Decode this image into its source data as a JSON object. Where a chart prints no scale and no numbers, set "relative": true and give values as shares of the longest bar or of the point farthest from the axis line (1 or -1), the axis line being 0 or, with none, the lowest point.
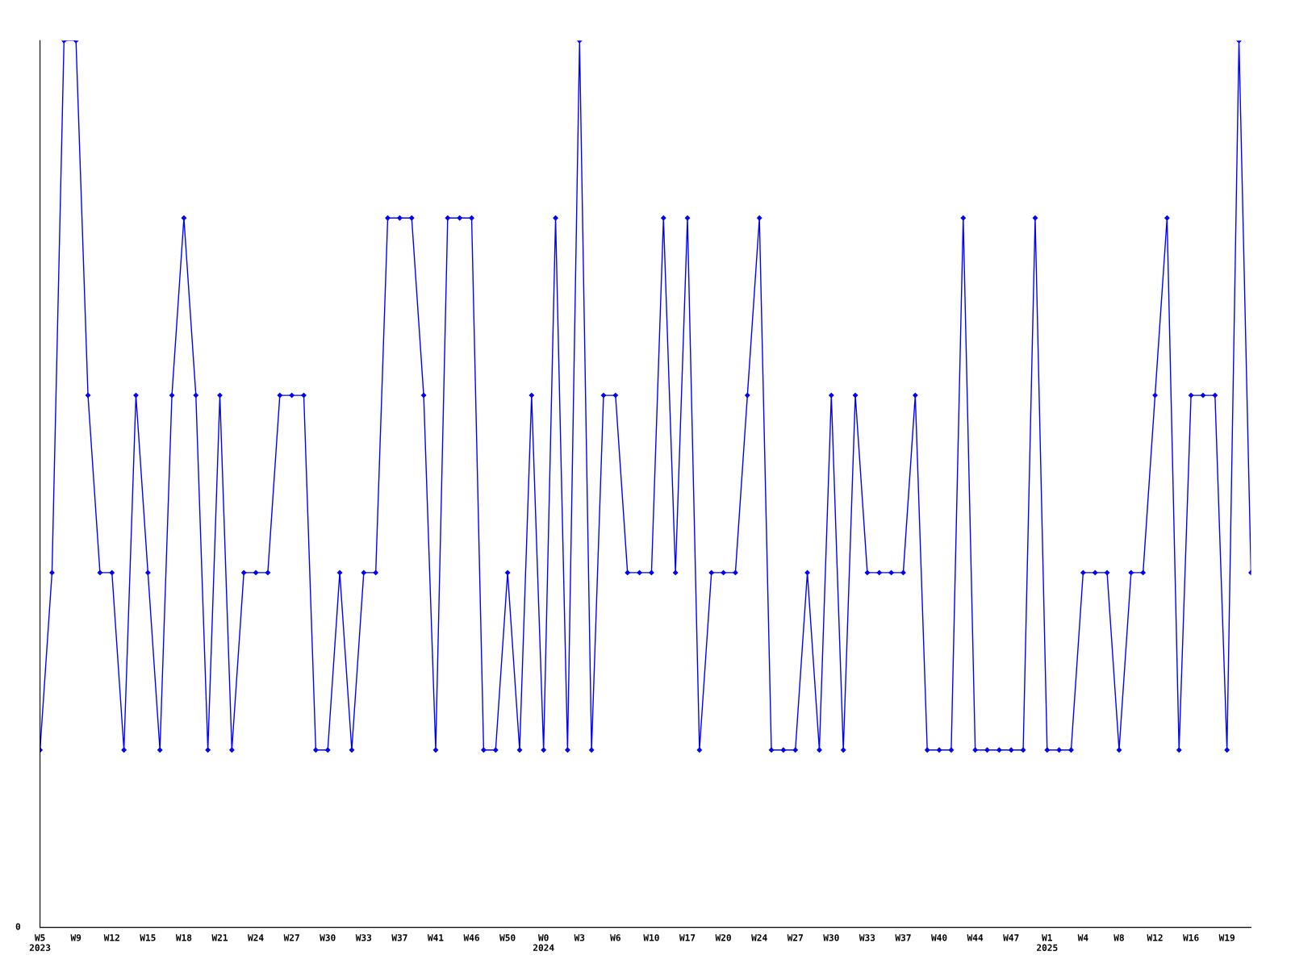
{
  "chart_data": {
    "type": "line",
    "relative": true,
    "annotations": [
      "0"
    ],
    "marker": "diamond",
    "line_style": "solid",
    "grid": false,
    "legend": false,
    "categories": [
      "W5\n2023",
      null,
      null,
      "W9",
      null,
      null,
      "W12",
      null,
      null,
      "W15",
      null,
      null,
      "W18",
      null,
      null,
      "W21",
      null,
      null,
      "W24",
      null,
      null,
      "W27",
      null,
      null,
      "W30",
      null,
      null,
      "W33",
      null,
      null,
      "W37",
      null,
      null,
      "W41",
      null,
      null,
      "W46",
      null,
      null,
      "W50",
      null,
      null,
      "W0\n2024",
      null,
      null,
      "W3",
      null,
      null,
      "W6",
      null,
      null,
      "W10",
      null,
      null,
      "W17",
      null,
      null,
      "W20",
      null,
      null,
      "W24",
      null,
      null,
      "W27",
      null,
      null,
      "W30",
      null,
      null,
      "W33",
      null,
      null,
      "W37",
      null,
      null,
      "W40",
      null,
      null,
      "W44",
      null,
      null,
      "W47",
      null,
      null,
      "W1\n2025",
      null,
      null,
      "W4",
      null,
      null,
      "W8",
      null,
      null,
      "W12",
      null,
      null,
      "W16",
      null,
      null,
      "W19",
      null,
      null
    ],
    "series": [
      {
        "color": "#0000ff",
        "values": [
          0.2,
          0.4,
          1,
          1,
          0.6,
          0.4,
          0.4,
          0.2,
          0.6,
          0.4,
          0.2,
          0.6,
          0.8,
          0.6,
          0.2,
          0.6,
          0.2,
          0.4,
          0.4,
          0.4,
          0.6,
          0.6,
          0.6,
          0.2,
          0.2,
          0.4,
          0.2,
          0.4,
          0.4,
          0.8,
          0.8,
          0.8,
          0.6,
          0.2,
          0.8,
          0.8,
          0.8,
          0.2,
          0.2,
          0.4,
          0.2,
          0.6,
          0.2,
          0.8,
          0.2,
          1,
          0.2,
          0.6,
          0.6,
          0.4,
          0.4,
          0.4,
          0.8,
          0.4,
          0.8,
          0.2,
          0.4,
          0.4,
          0.4,
          0.6,
          0.8,
          0.2,
          0.2,
          0.2,
          0.4,
          0.2,
          0.6,
          0.2,
          0.6,
          0.4,
          0.4,
          0.4,
          0.4,
          0.6,
          0.2,
          0.2,
          0.2,
          0.8,
          0.2,
          0.2,
          0.2,
          0.2,
          0.2,
          0.8,
          0.2,
          0.2,
          0.2,
          0.4,
          0.4,
          0.4,
          0.2,
          0.4,
          0.4,
          0.6,
          0.8,
          0.2,
          0.6,
          0.6,
          0.6,
          0.2,
          1,
          0.4
        ]
      }
    ]
  }
}
